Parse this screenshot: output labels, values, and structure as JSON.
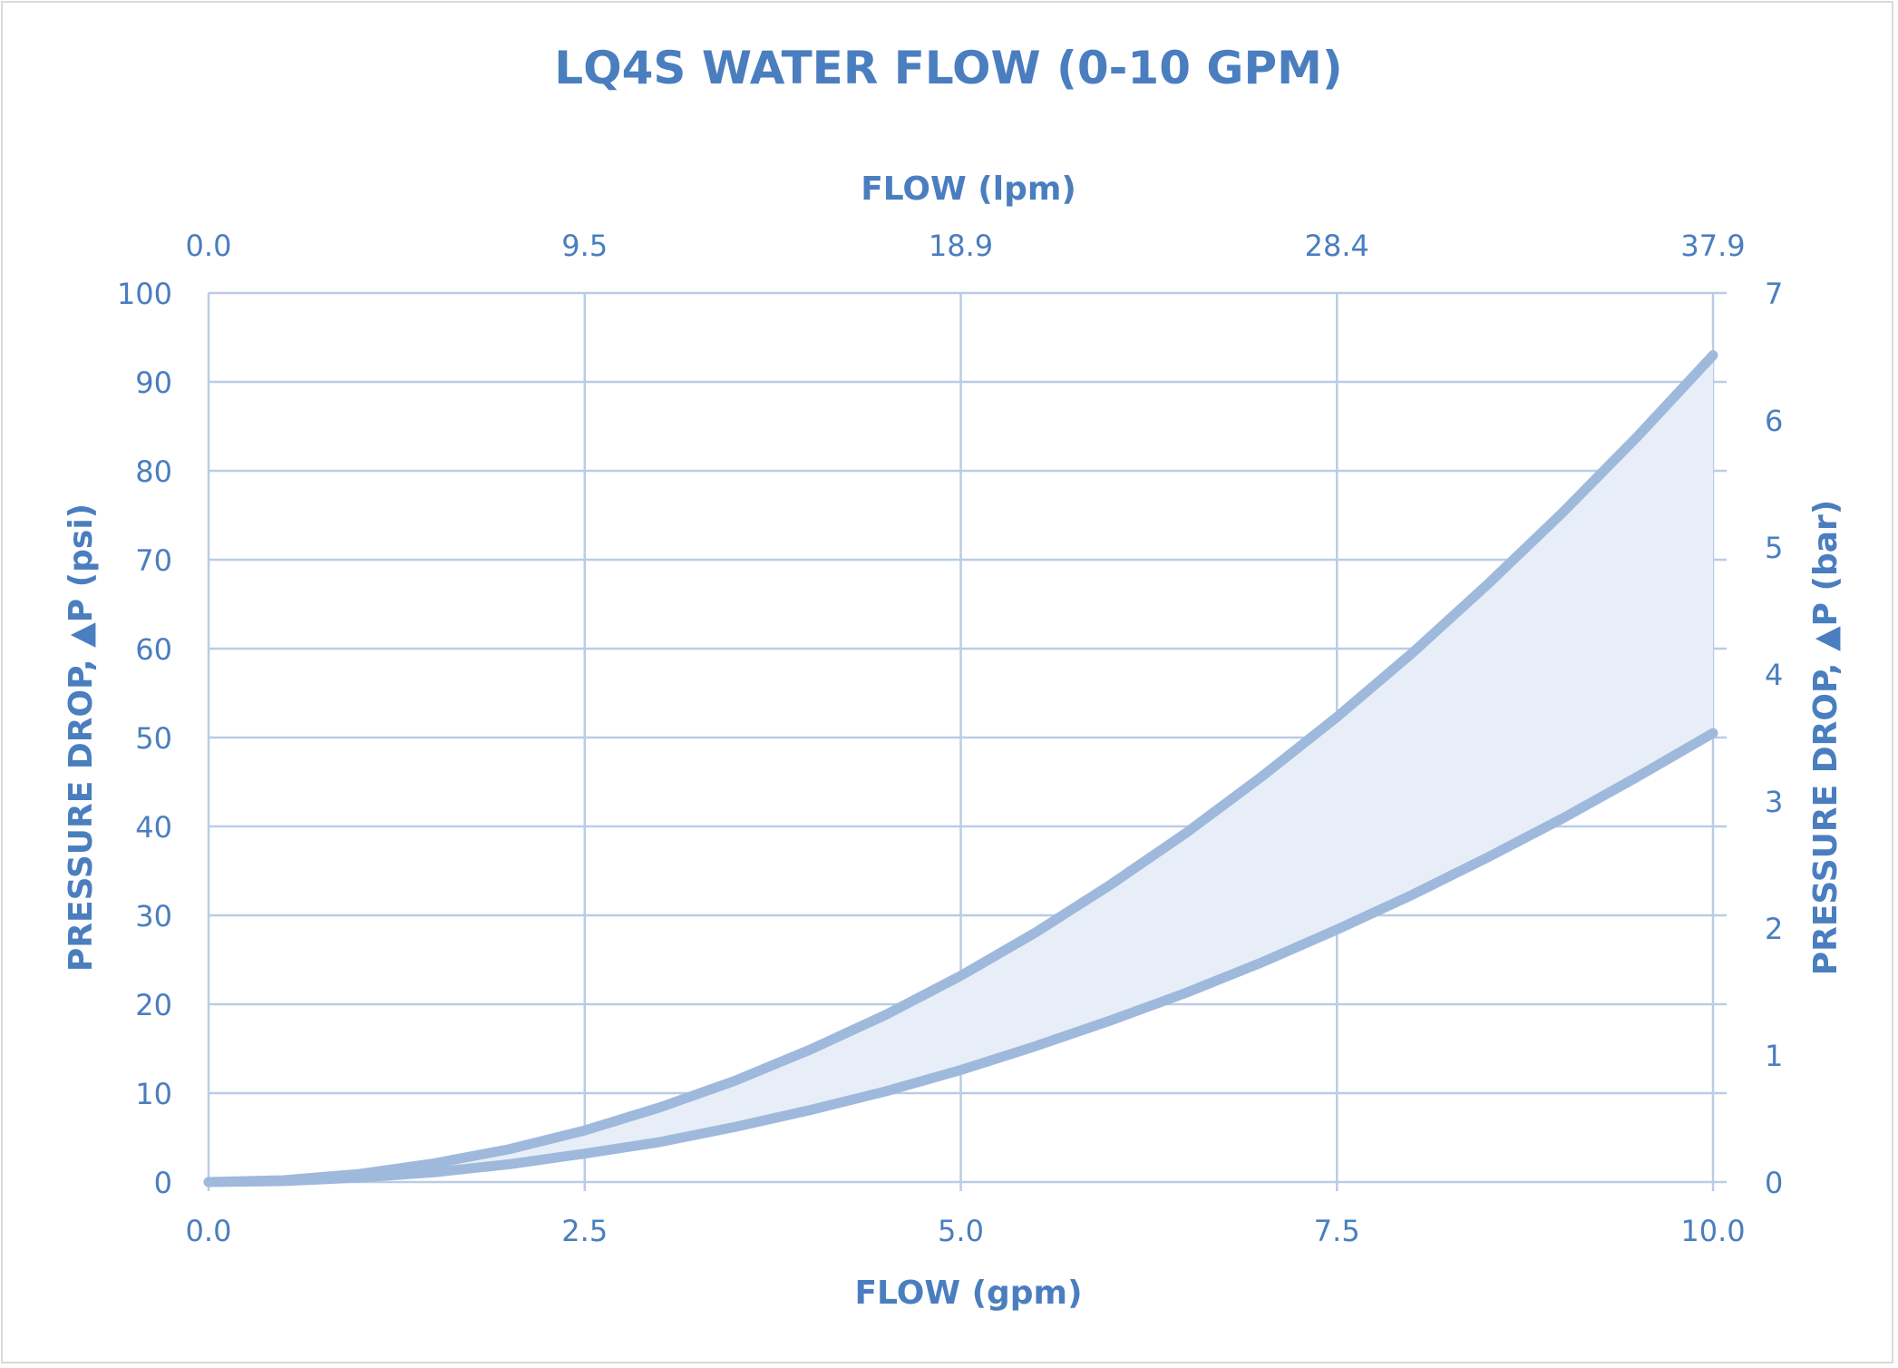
{
  "chart_data": {
    "type": "area",
    "title": "LQ4S WATER FLOW (0-10 GPM)",
    "xlabel": "FLOW (gpm)",
    "x2label": "FLOW (lpm)",
    "ylabel": "PRESSURE DROP, ▲P (psi)",
    "y2label": "PRESSURE DROP, ▲P (bar)",
    "xlim": [
      0,
      10
    ],
    "ylim": [
      0,
      100
    ],
    "y2lim": [
      0,
      7
    ],
    "x_ticks": [
      "0.0",
      "2.5",
      "5.0",
      "7.5",
      "10.0"
    ],
    "x2_ticks": [
      "0.0",
      "9.5",
      "18.9",
      "28.4",
      "37.9"
    ],
    "y_ticks": [
      "0",
      "10",
      "20",
      "30",
      "40",
      "50",
      "60",
      "70",
      "80",
      "90",
      "100"
    ],
    "y2_ticks": [
      "0",
      "1",
      "2",
      "3",
      "4",
      "5",
      "6",
      "7"
    ],
    "grid": true,
    "x": [
      0,
      0.5,
      1,
      1.5,
      2,
      2.5,
      3,
      3.5,
      4,
      4.5,
      5,
      5.5,
      6,
      6.5,
      7,
      7.5,
      8,
      8.5,
      9,
      9.5,
      10
    ],
    "series": [
      {
        "values": [
          0,
          0.2,
          0.9,
          2.1,
          3.7,
          5.8,
          8.4,
          11.4,
          14.9,
          18.8,
          23.2,
          28.1,
          33.5,
          39.3,
          45.6,
          52.3,
          59.5,
          67.2,
          75.3,
          83.9,
          93.0
        ]
      },
      {
        "values": [
          0,
          0.1,
          0.5,
          1.1,
          2.0,
          3.2,
          4.5,
          6.2,
          8.1,
          10.2,
          12.6,
          15.3,
          18.2,
          21.3,
          24.7,
          28.4,
          32.3,
          36.5,
          40.9,
          45.6,
          50.5
        ]
      }
    ],
    "colors": {
      "line": "#9fb9dc",
      "fill": "#e8eef7",
      "grid": "#b9cde5",
      "text": "#4a7ebf"
    }
  }
}
